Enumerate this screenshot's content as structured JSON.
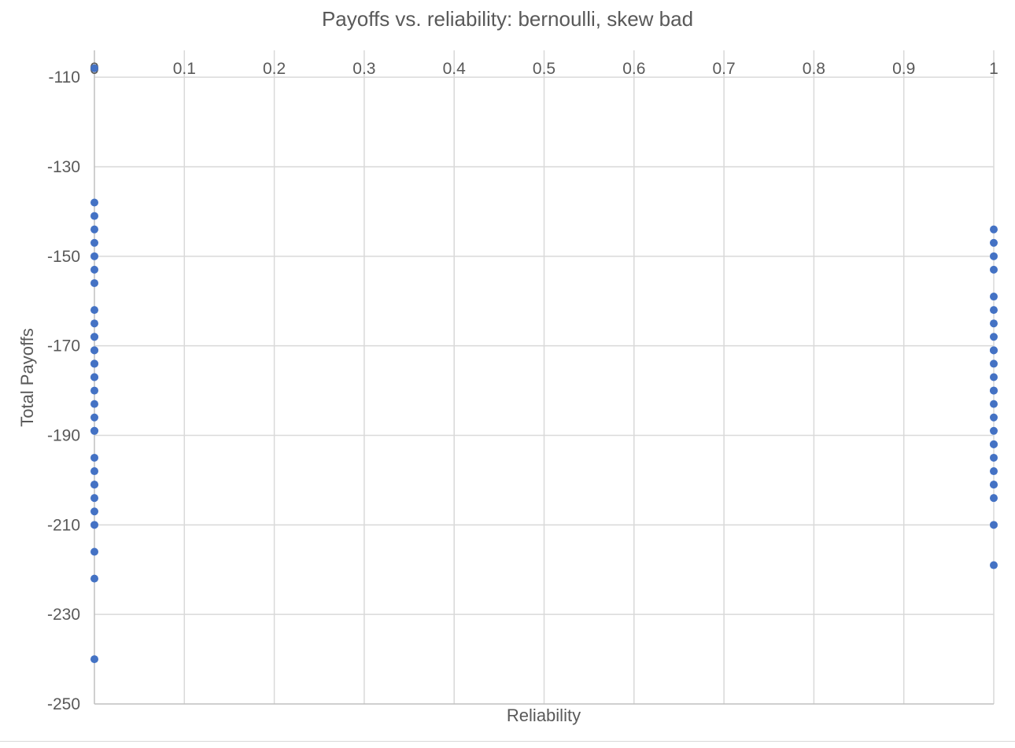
{
  "chart_data": {
    "type": "scatter",
    "title": "Payoffs vs. reliability: bernoulli, skew bad",
    "xlabel": "Reliability",
    "ylabel": "Total Payoffs",
    "xlim": [
      0,
      1
    ],
    "ylim": [
      -250,
      -104
    ],
    "xticks": [
      0,
      0.1,
      0.2,
      0.3,
      0.4,
      0.5,
      0.6,
      0.7,
      0.8,
      0.9,
      1
    ],
    "yticks": [
      -110,
      -130,
      -150,
      -170,
      -190,
      -210,
      -230,
      -250
    ],
    "grid": true,
    "color": "#4472c4",
    "series": [
      {
        "x": [
          0,
          0,
          0,
          0,
          0,
          0,
          0,
          0,
          0,
          0,
          0,
          0,
          0,
          0,
          0,
          0,
          0,
          0,
          0,
          0,
          0,
          0,
          0,
          0,
          0,
          0,
          0,
          0,
          0,
          0,
          0,
          0,
          0
        ],
        "y": [
          -108,
          -138,
          -141,
          -144,
          -147,
          -150,
          -153,
          -156,
          -162,
          -165,
          -168,
          -171,
          -174,
          -177,
          -180,
          -183,
          -186,
          -189,
          -195,
          -198,
          -201,
          -204,
          -207,
          -210,
          -216,
          -222,
          -240,
          -168,
          -171,
          -177,
          -189,
          -201,
          -174
        ]
      },
      {
        "x": [
          1,
          1,
          1,
          1,
          1,
          1,
          1,
          1,
          1,
          1,
          1,
          1,
          1,
          1,
          1,
          1,
          1,
          1,
          1,
          1,
          1,
          1,
          1,
          1,
          1,
          1
        ],
        "y": [
          -144,
          -147,
          -150,
          -153,
          -159,
          -162,
          -165,
          -168,
          -171,
          -174,
          -177,
          -180,
          -183,
          -186,
          -189,
          -192,
          -195,
          -198,
          -201,
          -204,
          -210,
          -219,
          -171,
          -180,
          -192,
          -201
        ]
      }
    ]
  }
}
